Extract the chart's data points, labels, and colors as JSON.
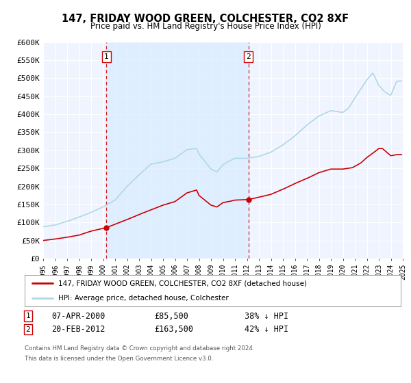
{
  "title": "147, FRIDAY WOOD GREEN, COLCHESTER, CO2 8XF",
  "subtitle": "Price paid vs. HM Land Registry's House Price Index (HPI)",
  "ylim": [
    0,
    600000
  ],
  "yticks": [
    0,
    50000,
    100000,
    150000,
    200000,
    250000,
    300000,
    350000,
    400000,
    450000,
    500000,
    550000,
    600000
  ],
  "ytick_labels": [
    "£0",
    "£50K",
    "£100K",
    "£150K",
    "£200K",
    "£250K",
    "£300K",
    "£350K",
    "£400K",
    "£450K",
    "£500K",
    "£550K",
    "£600K"
  ],
  "hpi_color": "#add8e6",
  "price_color": "#cc0000",
  "vline_color": "#cc0000",
  "fig_bg_color": "#ffffff",
  "plot_bg_color": "#f0f4ff",
  "grid_color": "#ffffff",
  "t1_x": 2000.27,
  "t1_price": 85500,
  "t2_x": 2012.13,
  "t2_price": 163500,
  "annotation1_date": "07-APR-2000",
  "annotation1_price": "£85,500",
  "annotation1_pct": "38% ↓ HPI",
  "annotation2_date": "20-FEB-2012",
  "annotation2_price": "£163,500",
  "annotation2_pct": "42% ↓ HPI",
  "legend_entry1": "147, FRIDAY WOOD GREEN, COLCHESTER, CO2 8XF (detached house)",
  "legend_entry2": "HPI: Average price, detached house, Colchester",
  "footer_line1": "Contains HM Land Registry data © Crown copyright and database right 2024.",
  "footer_line2": "This data is licensed under the Open Government Licence v3.0.",
  "xlim_start": 1995,
  "xlim_end": 2025
}
